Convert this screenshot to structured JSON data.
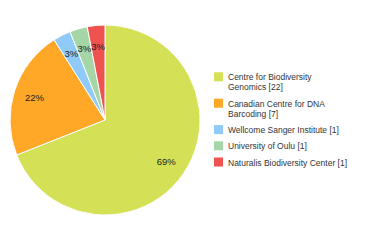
{
  "chart_data": {
    "type": "pie",
    "categories": [
      "Centre for Biodiversity\nGenomics [22]",
      "Canadian Centre for DNA\nBarcoding [7]",
      "Wellcome Sanger Institute [1]",
      "University of Oulu [1]",
      "Naturalis Biodiversity Center [1]"
    ],
    "values": [
      69,
      22,
      3,
      3,
      3
    ],
    "value_labels": [
      "69%",
      "22%",
      "3%",
      "3%",
      "3%"
    ],
    "colors": [
      "#d4e157",
      "#ffa726",
      "#90caf9",
      "#a5d6a7",
      "#ef5350"
    ],
    "data_labels": true,
    "legend": "right"
  }
}
